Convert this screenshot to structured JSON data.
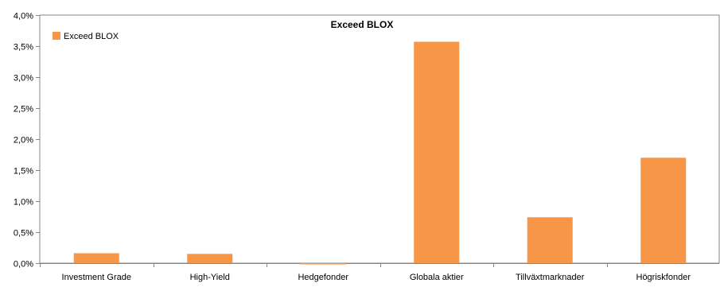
{
  "chart_data": {
    "type": "bar",
    "title": "Exceed BLOX",
    "xlabel": "",
    "ylabel": "",
    "categories": [
      "Investment Grade",
      "High-Yield",
      "Hedgefonder",
      "Globala aktier",
      "Tillväxtmarknader",
      "Högriskfonder"
    ],
    "series": [
      {
        "name": "Exceed BLOX",
        "values": [
          0.16,
          0.15,
          -0.02,
          3.57,
          0.74,
          1.7
        ],
        "color": "#F79646"
      }
    ],
    "ylim": [
      0,
      4.0
    ],
    "yticks": [
      0,
      0.5,
      1.0,
      1.5,
      2.0,
      2.5,
      3.0,
      3.5,
      4.0
    ],
    "ytick_labels": [
      "0,0%",
      "0,5%",
      "1,0%",
      "1,5%",
      "2,0%",
      "2,5%",
      "3,0%",
      "3,5%",
      "4,0%"
    ],
    "grid": false,
    "legend_position": "top-left"
  }
}
